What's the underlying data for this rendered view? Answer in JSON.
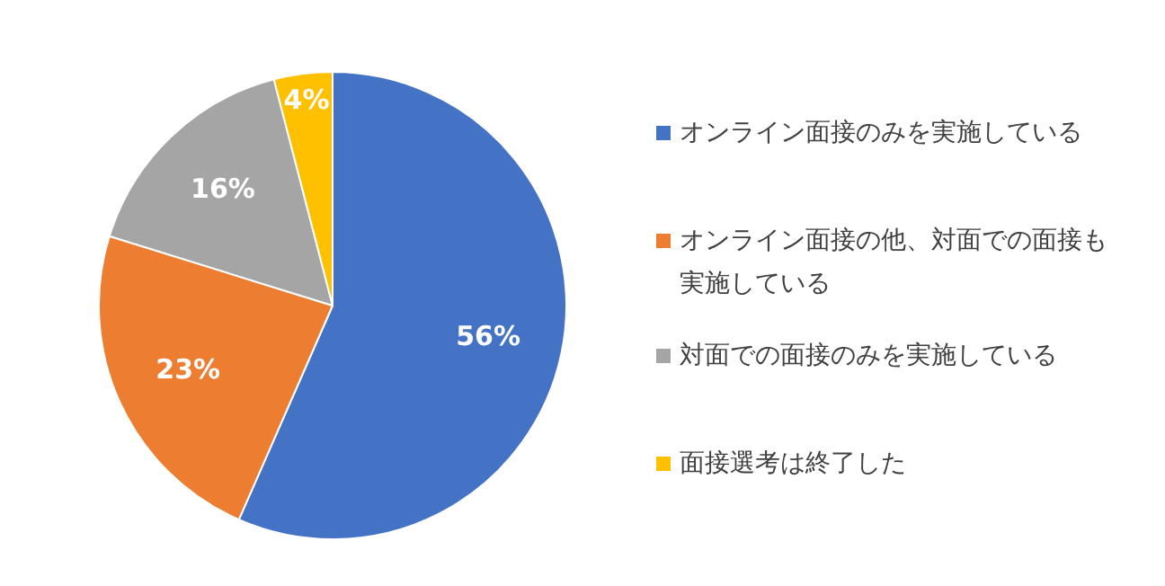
{
  "chart_data": {
    "type": "pie",
    "categories": [
      "オンライン面接のみを実施している",
      "オンライン面接の他、対面での面接も実施している",
      "対面での面接のみを実施している",
      "面接選考は終了した"
    ],
    "values": [
      56,
      23,
      16,
      4
    ],
    "colors": [
      "#4472c4",
      "#ed7d31",
      "#a5a5a5",
      "#ffc000"
    ],
    "value_labels": [
      "56%",
      "23%",
      "16%",
      "4%"
    ],
    "legend": "right"
  }
}
